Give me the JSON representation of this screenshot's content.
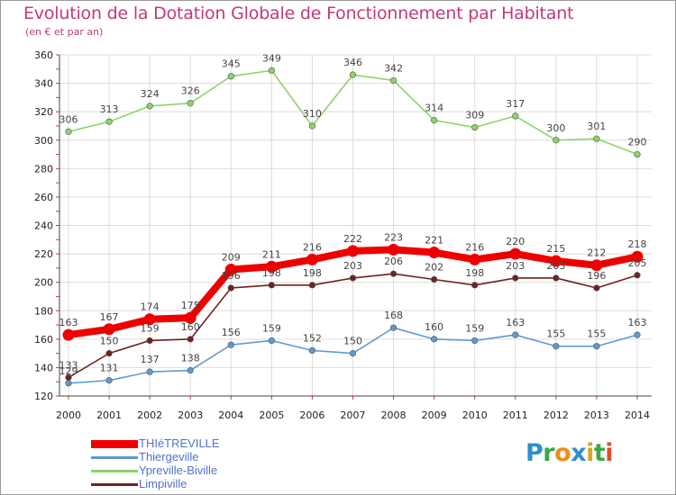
{
  "title": "Evolution de la Dotation Globale de Fonctionnement par Habitant",
  "subtitle": "(en € et par an)",
  "brand": {
    "text": "Proxiti",
    "letters": [
      {
        "ch": "P",
        "color": "#2e8fd0"
      },
      {
        "ch": "r",
        "color": "#3aa843"
      },
      {
        "ch": "o",
        "color": "#f08b1e"
      },
      {
        "ch": "x",
        "color": "#2e8fd0"
      },
      {
        "ch": "i",
        "color": "#d4a62a"
      },
      {
        "ch": "t",
        "color": "#3aa843"
      },
      {
        "ch": "i",
        "color": "#e64b2c"
      }
    ]
  },
  "chart_data": {
    "type": "line",
    "x": [
      "2000",
      "2001",
      "2002",
      "2003",
      "2004",
      "2005",
      "2006",
      "2007",
      "2008",
      "2009",
      "2010",
      "2011",
      "2012",
      "2013",
      "2014"
    ],
    "ylim": [
      120,
      360
    ],
    "yticks": [
      120,
      140,
      160,
      180,
      200,
      220,
      240,
      260,
      280,
      300,
      320,
      340,
      360
    ],
    "grid": true,
    "legend_position": "bottom-left",
    "series": [
      {
        "name": "THIéTREVILLE",
        "color": "#ee0000",
        "thick": true,
        "values": [
          163,
          167,
          174,
          175,
          209,
          211,
          216,
          222,
          223,
          221,
          216,
          220,
          215,
          212,
          218
        ]
      },
      {
        "name": "Thiergeville",
        "color": "#5e9bcf",
        "thick": false,
        "values": [
          129,
          131,
          137,
          138,
          156,
          159,
          152,
          150,
          168,
          160,
          159,
          163,
          155,
          155,
          163
        ]
      },
      {
        "name": "Ypreville-Biville",
        "color": "#8cd36a",
        "thick": false,
        "values": [
          306,
          313,
          324,
          326,
          345,
          349,
          310,
          346,
          342,
          314,
          309,
          317,
          300,
          301,
          290
        ]
      },
      {
        "name": "Limpiville",
        "color": "#6e2222",
        "thick": false,
        "values": [
          133,
          150,
          159,
          160,
          196,
          198,
          198,
          203,
          206,
          202,
          198,
          203,
          203,
          196,
          205
        ]
      }
    ]
  }
}
